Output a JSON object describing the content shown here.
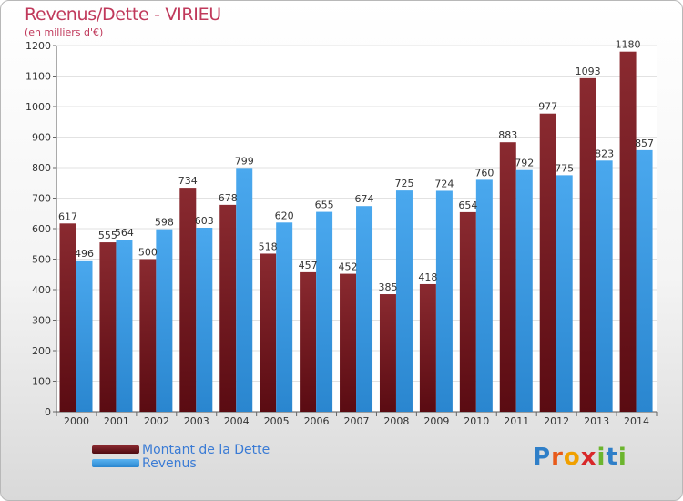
{
  "title": "Revenus/Dette - VIRIEU",
  "subtitle": "(en milliers d'€)",
  "logo": {
    "letters": [
      "P",
      "r",
      "o",
      "x",
      "i",
      "t",
      "i"
    ],
    "colors": [
      "#2f7fc8",
      "#e85a1a",
      "#f0a000",
      "#d8282a",
      "#6cb52e",
      "#2f7fc8",
      "#6cb52e"
    ]
  },
  "chart_data": {
    "type": "bar",
    "title": "Revenus/Dette - VIRIEU",
    "subtitle": "(en milliers d'€)",
    "categories": [
      "2000",
      "2001",
      "2002",
      "2003",
      "2004",
      "2005",
      "2006",
      "2007",
      "2008",
      "2009",
      "2010",
      "2011",
      "2012",
      "2013",
      "2014"
    ],
    "series": [
      {
        "name": "Montant de la Dette",
        "color": "#7a1a22",
        "values": [
          617,
          555,
          500,
          734,
          678,
          518,
          457,
          452,
          385,
          418,
          654,
          883,
          977,
          1093,
          1180
        ]
      },
      {
        "name": "Revenus",
        "color": "#3b9ce6",
        "values": [
          496,
          564,
          598,
          603,
          799,
          620,
          655,
          674,
          725,
          724,
          760,
          792,
          775,
          823,
          857
        ]
      }
    ],
    "ylim": [
      0,
      1200
    ],
    "yticks": [
      0,
      100,
      200,
      300,
      400,
      500,
      600,
      700,
      800,
      900,
      1000,
      1100,
      1200
    ],
    "grid": true,
    "legend": "bottom-left"
  }
}
